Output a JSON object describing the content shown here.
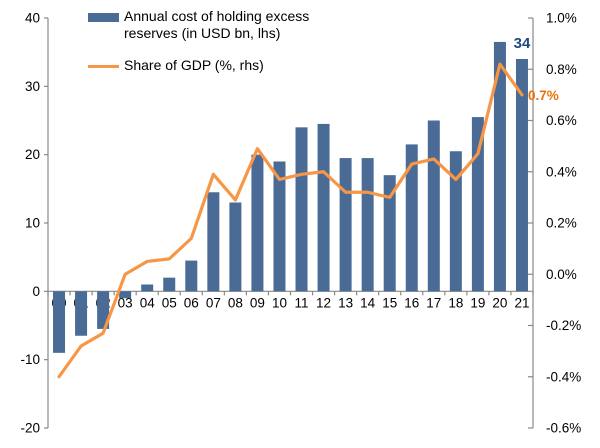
{
  "legend": {
    "bars_label": "Annual cost of holding excess reserves (in USD bn, lhs)",
    "line_label": "Share of GDP (%, rhs)"
  },
  "colors": {
    "bar": "#4a6b96",
    "line": "#f79646",
    "bar_annotation": "#1f497d",
    "line_annotation": "#e8710a",
    "axis": "#898989",
    "tick_text": "#000000"
  },
  "chart_data": {
    "type": "combo_bar_line",
    "title": "",
    "grid": false,
    "legend_position": "top-left-inside",
    "categories": [
      "00",
      "01",
      "02",
      "03",
      "04",
      "05",
      "06",
      "07",
      "08",
      "09",
      "10",
      "11",
      "12",
      "13",
      "14",
      "15",
      "16",
      "17",
      "18",
      "19",
      "20",
      "21"
    ],
    "series": [
      {
        "name": "Annual cost of holding excess reserves (in USD bn, lhs)",
        "type": "bar",
        "axis": "left",
        "values": [
          -9,
          -6.5,
          -5.5,
          -1,
          1,
          2,
          4.5,
          14.5,
          13,
          20,
          19,
          24,
          24.5,
          19.5,
          19.5,
          17,
          21.5,
          25,
          20.5,
          25.5,
          36.5,
          34
        ]
      },
      {
        "name": "Share of GDP (%, rhs)",
        "type": "line",
        "axis": "right",
        "values": [
          -0.4,
          -0.28,
          -0.23,
          0.0,
          0.05,
          0.06,
          0.14,
          0.39,
          0.29,
          0.49,
          0.37,
          0.39,
          0.4,
          0.32,
          0.32,
          0.3,
          0.43,
          0.45,
          0.37,
          0.47,
          0.82,
          0.7
        ]
      }
    ],
    "left_axis": {
      "min": -20,
      "max": 40,
      "tick_values": [
        40,
        30,
        20,
        10,
        0,
        -10,
        -20
      ],
      "tick_labels": [
        "40",
        "30",
        "20",
        "10",
        "0",
        "-10",
        "-20"
      ]
    },
    "right_axis": {
      "min": -0.6,
      "max": 1.0,
      "tick_values": [
        1.0,
        0.8,
        0.6,
        0.4,
        0.2,
        0.0,
        -0.2,
        -0.4,
        -0.6
      ],
      "tick_labels": [
        "1.0%",
        "0.8%",
        "0.6%",
        "0.4%",
        "0.2%",
        "0.0%",
        "-0.2%",
        "-0.4%",
        "-0.6%"
      ]
    },
    "annotations": [
      {
        "target": "bar",
        "category_index": 21,
        "text": "34"
      },
      {
        "target": "line",
        "category_index": 21,
        "text": "0.7%"
      }
    ]
  }
}
